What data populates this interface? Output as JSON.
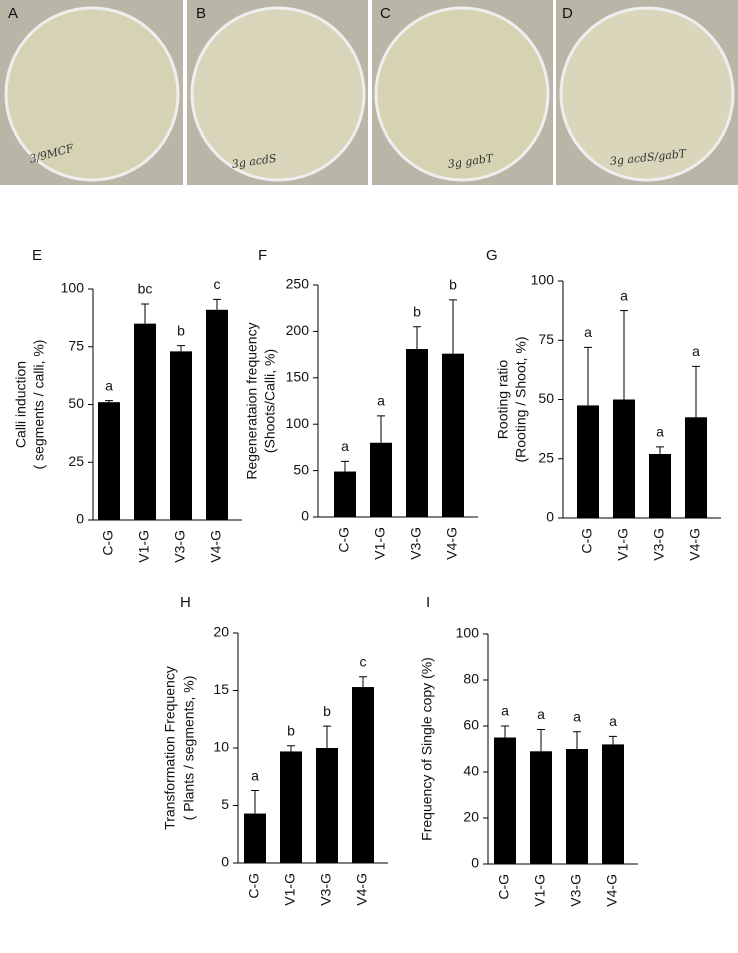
{
  "photos": {
    "panels": [
      "A",
      "B",
      "C",
      "D"
    ],
    "plate_labels": [
      "3/9MCF",
      "3g acdS",
      "3g gabT",
      "3g acdS/gabT"
    ]
  },
  "chart_data": [
    {
      "type": "bar",
      "panel": "E",
      "ylabel": [
        "Calli induction",
        "( segments / calli, %)"
      ],
      "categories": [
        "C-G",
        "V1-G",
        "V3-G",
        "V4-G"
      ],
      "values": [
        51,
        85,
        73,
        91
      ],
      "errors": [
        0.7,
        8.5,
        2.5,
        4.5
      ],
      "annotations": [
        "a",
        "bc",
        "b",
        "c"
      ],
      "color": "#000000",
      "ylim": [
        0,
        100
      ],
      "yticks": [
        0,
        25,
        50,
        75,
        100
      ]
    },
    {
      "type": "bar",
      "panel": "F",
      "ylabel": [
        "Regenerataion frequency",
        "(Shoots/Calli, %)"
      ],
      "categories": [
        "C-G",
        "V1-G",
        "V3-G",
        "V4-G"
      ],
      "values": [
        49,
        80,
        181,
        176
      ],
      "errors": [
        11,
        29,
        24,
        58
      ],
      "annotations": [
        "a",
        "a",
        "b",
        "b"
      ],
      "color": "#000000",
      "ylim": [
        0,
        250
      ],
      "yticks": [
        0,
        50,
        100,
        150,
        200,
        250
      ]
    },
    {
      "type": "bar",
      "panel": "G",
      "ylabel": [
        "Rooting ratio",
        "(Rooting / Shoot, %)"
      ],
      "categories": [
        "C-G",
        "V1-G",
        "V3-G",
        "V4-G"
      ],
      "values": [
        47.5,
        50,
        27,
        42.5
      ],
      "errors": [
        24.5,
        37.5,
        3,
        21.5
      ],
      "annotations": [
        "a",
        "a",
        "a",
        "a"
      ],
      "color": "#000000",
      "ylim": [
        0,
        100
      ],
      "yticks": [
        0,
        25,
        50,
        75,
        100
      ]
    },
    {
      "type": "bar",
      "panel": "H",
      "ylabel": [
        "Transformation Frequency",
        "( Plants / segments, %)"
      ],
      "categories": [
        "C-G",
        "V1-G",
        "V3-G",
        "V4-G"
      ],
      "values": [
        4.3,
        9.7,
        10,
        15.3
      ],
      "errors": [
        2,
        0.5,
        1.9,
        0.9
      ],
      "annotations": [
        "a",
        "b",
        "b",
        "c"
      ],
      "color": "#000000",
      "ylim": [
        0,
        20
      ],
      "yticks": [
        0,
        5,
        10,
        15,
        20
      ]
    },
    {
      "type": "bar",
      "panel": "I",
      "ylabel": [
        "Frequency of Single copy (%)"
      ],
      "categories": [
        "C-G",
        "V1-G",
        "V3-G",
        "V4-G"
      ],
      "values": [
        55,
        49,
        50,
        52
      ],
      "errors": [
        5,
        9.5,
        7.5,
        3.5
      ],
      "annotations": [
        "a",
        "a",
        "a",
        "a"
      ],
      "color": "#000000",
      "ylim": [
        0,
        100
      ],
      "yticks": [
        0,
        20,
        40,
        60,
        80,
        100
      ]
    }
  ]
}
